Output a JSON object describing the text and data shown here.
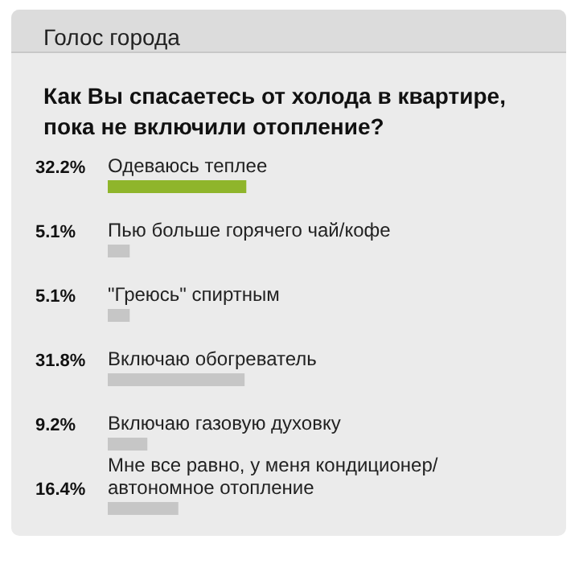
{
  "chart_data": {
    "type": "bar",
    "orientation": "horizontal",
    "title": "Голос города",
    "subtitle": "Как Вы спасаетесь от холода в квартире, пока не включили отопление?",
    "categories": [
      "Одеваюсь теплее",
      "Пью больше горячего чай/кофе",
      "\"Греюсь\" спиртным",
      "Включаю обогреватель",
      "Включаю газовую духовку",
      "Мне все равно, у меня кондиционер/ автономное отопление"
    ],
    "values": [
      32.2,
      5.1,
      5.1,
      31.8,
      9.2,
      16.4
    ],
    "value_labels": [
      "32.2%",
      "5.1%",
      "5.1%",
      "31.8%",
      "9.2%",
      "16.4%"
    ],
    "colors": [
      "#8fb52b",
      "#c6c6c6",
      "#c6c6c6",
      "#c6c6c6",
      "#c6c6c6",
      "#c6c6c6"
    ]
  }
}
